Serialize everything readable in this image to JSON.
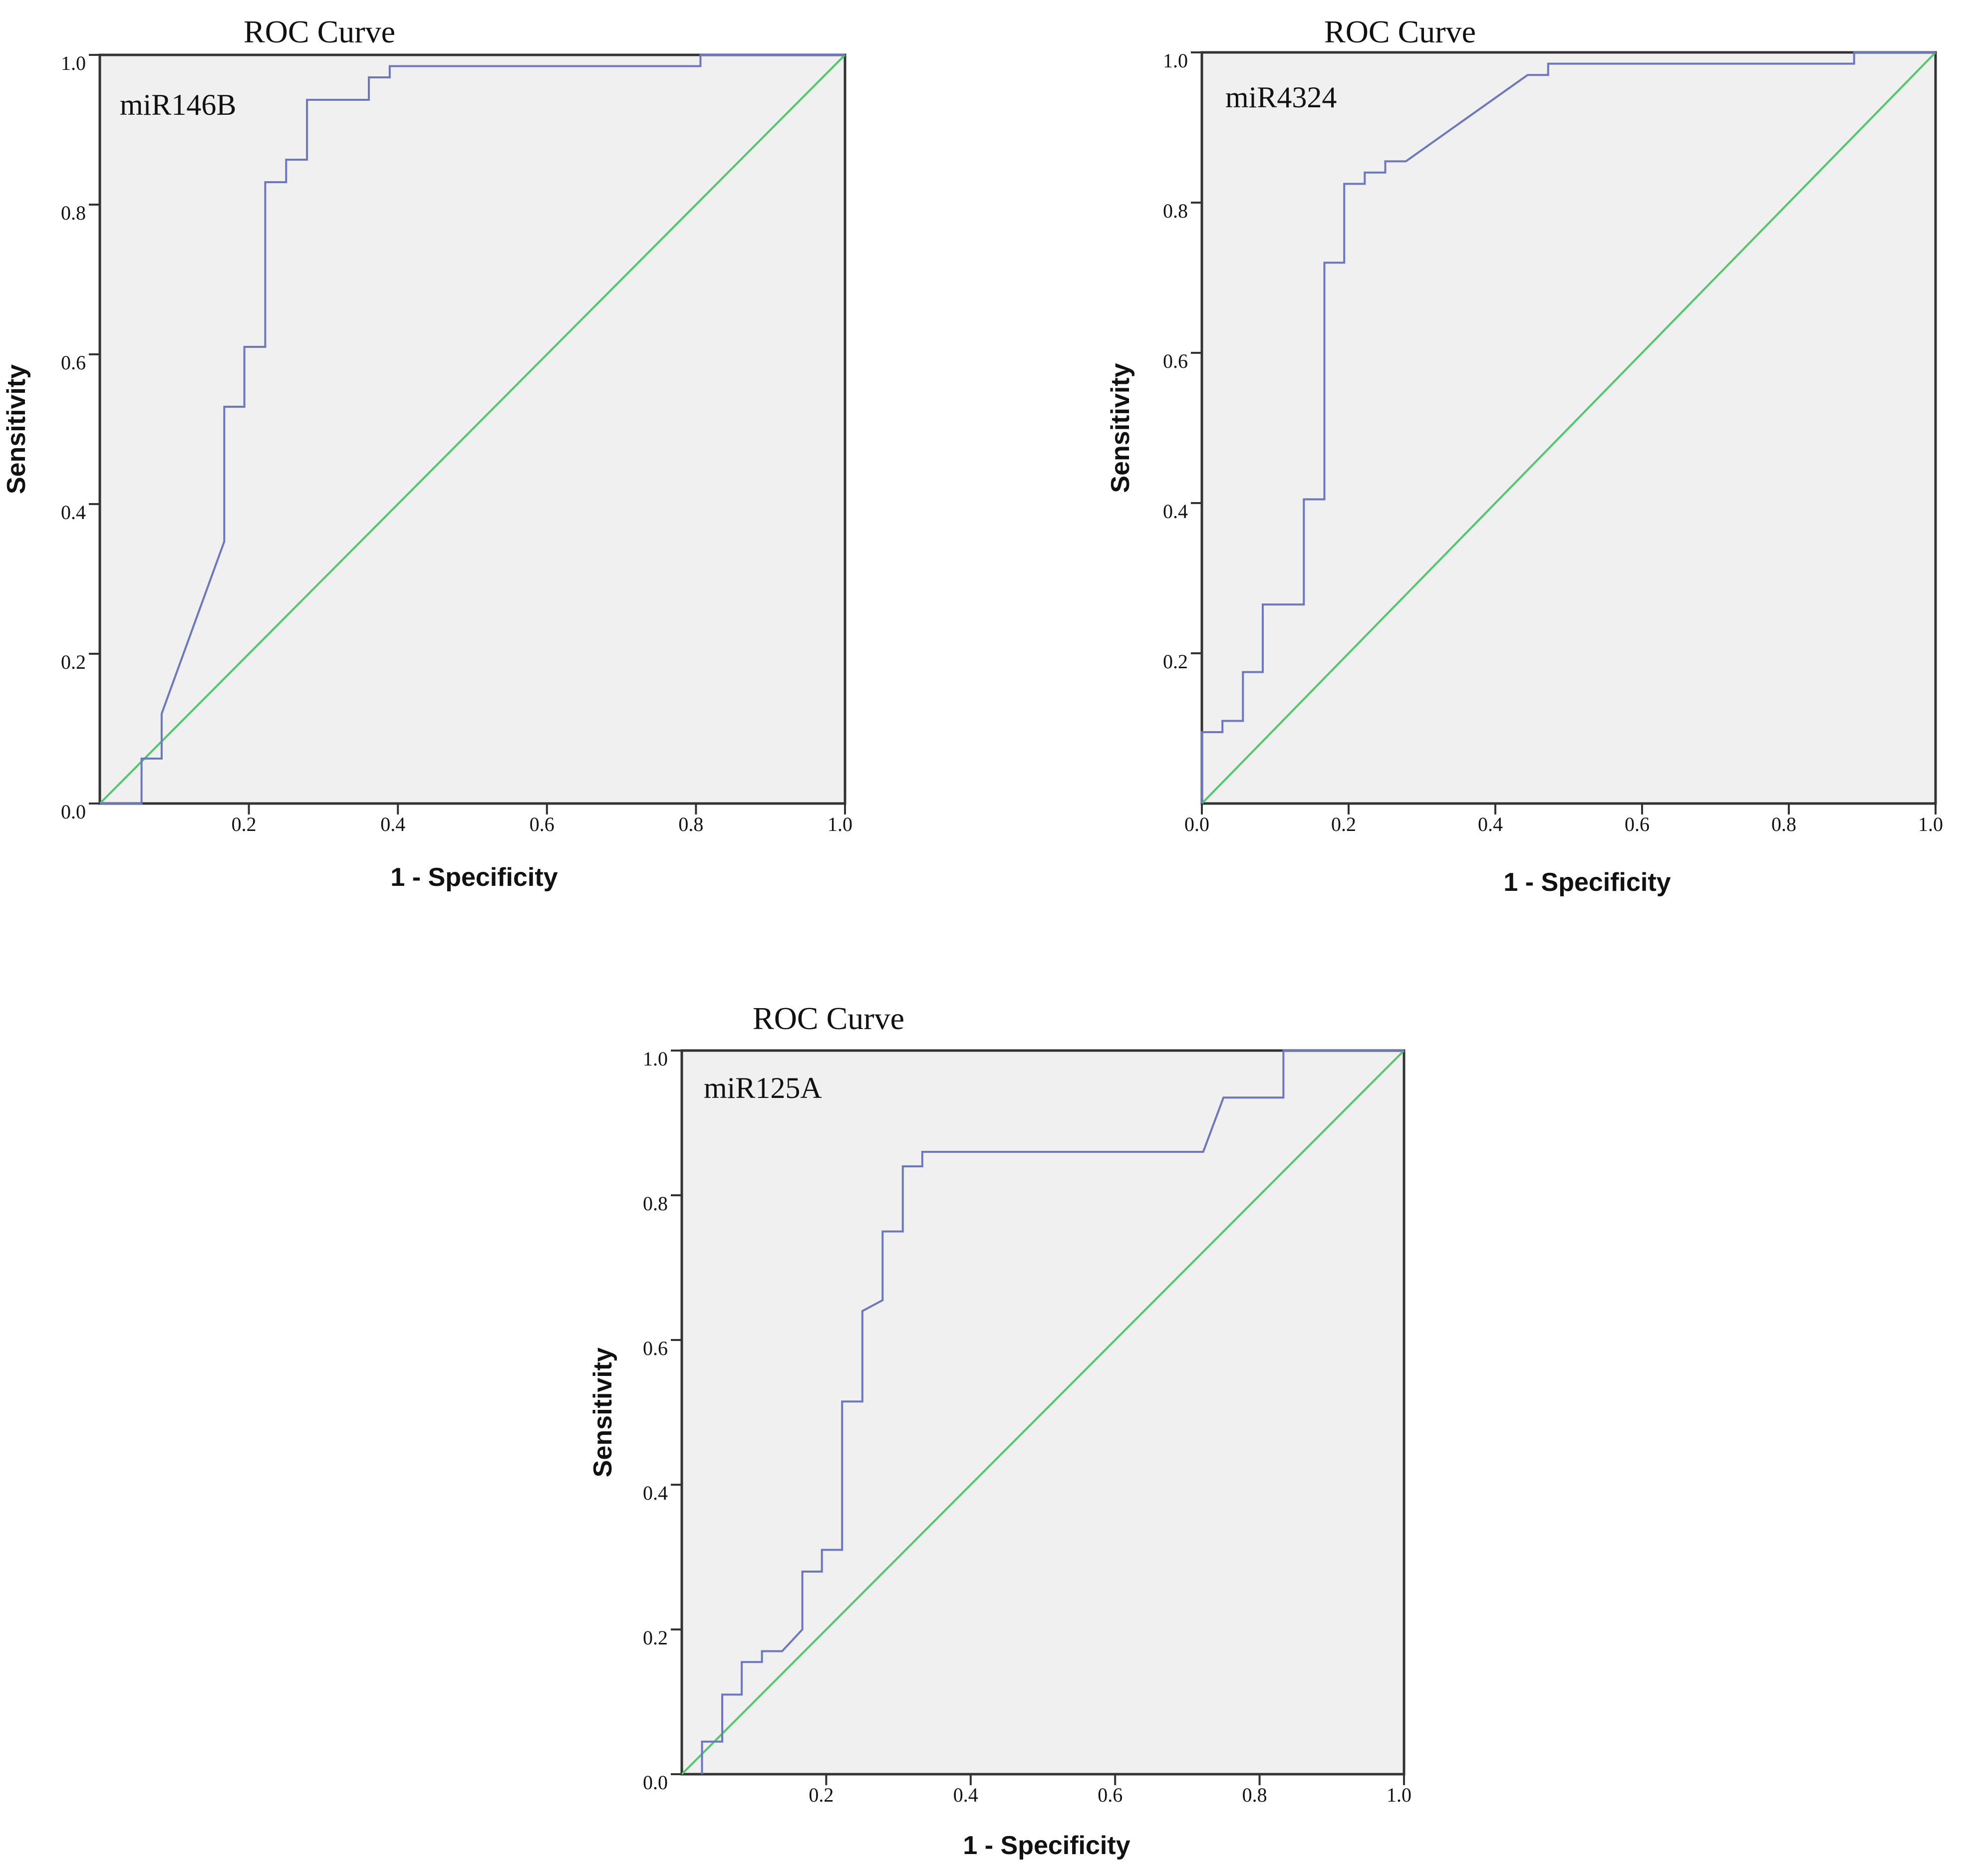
{
  "colors": {
    "plot_background": "#f0f0f0",
    "frame": "#333333",
    "roc_curve": "#6b78c0",
    "reference_line": "#4fc86a"
  },
  "chart_data": [
    {
      "type": "line",
      "title": "ROC Curve",
      "panel_label": "miR146B",
      "xlabel": "1 - Specificity",
      "ylabel": "Sensitivity",
      "xlim": [
        0,
        1
      ],
      "ylim": [
        0,
        1
      ],
      "x_ticks": [
        0.2,
        0.4,
        0.6,
        0.8,
        1.0
      ],
      "x_tick_labels": [
        "0.2",
        "0.4",
        "0.6",
        "0.8",
        "1.0"
      ],
      "y_ticks": [
        0.0,
        0.2,
        0.4,
        0.6,
        0.8,
        1.0
      ],
      "y_tick_labels": [
        "0.0",
        "0.2",
        "0.4",
        "0.6",
        "0.8",
        "1.0"
      ],
      "grid": false,
      "series": [
        {
          "name": "ROC curve",
          "x": [
            0.0,
            0.056,
            0.056,
            0.083,
            0.083,
            0.167,
            0.167,
            0.194,
            0.194,
            0.222,
            0.222,
            0.25,
            0.25,
            0.278,
            0.278,
            0.361,
            0.361,
            0.389,
            0.389,
            0.806,
            0.806,
            1.0
          ],
          "y": [
            0.0,
            0.0,
            0.06,
            0.06,
            0.12,
            0.35,
            0.53,
            0.53,
            0.61,
            0.61,
            0.83,
            0.83,
            0.86,
            0.86,
            0.94,
            0.94,
            0.97,
            0.97,
            0.985,
            0.985,
            1.0,
            1.0
          ]
        },
        {
          "name": "Reference line",
          "x": [
            0,
            1
          ],
          "y": [
            0,
            1
          ]
        }
      ]
    },
    {
      "type": "line",
      "title": "ROC Curve",
      "panel_label": "miR4324",
      "xlabel": "1 - Specificity",
      "ylabel": "Sensitivity",
      "xlim": [
        0,
        1
      ],
      "ylim": [
        0,
        1
      ],
      "x_ticks": [
        0.0,
        0.2,
        0.4,
        0.6,
        0.8,
        1.0
      ],
      "x_tick_labels": [
        "0.0",
        "0.2",
        "0.4",
        "0.6",
        "0.8",
        "1.0"
      ],
      "y_ticks": [
        0.2,
        0.4,
        0.6,
        0.8,
        1.0
      ],
      "y_tick_labels": [
        "0.2",
        "0.4",
        "0.6",
        "0.8",
        "1.0"
      ],
      "grid": false,
      "series": [
        {
          "name": "ROC curve",
          "x": [
            0.0,
            0.0,
            0.028,
            0.028,
            0.056,
            0.056,
            0.083,
            0.083,
            0.139,
            0.139,
            0.167,
            0.167,
            0.194,
            0.194,
            0.222,
            0.222,
            0.25,
            0.25,
            0.278,
            0.444,
            0.444,
            0.472,
            0.472,
            0.889,
            0.889,
            1.0
          ],
          "y": [
            0.0,
            0.095,
            0.095,
            0.11,
            0.11,
            0.175,
            0.175,
            0.265,
            0.265,
            0.405,
            0.405,
            0.72,
            0.72,
            0.825,
            0.825,
            0.84,
            0.84,
            0.855,
            0.855,
            0.97,
            0.97,
            0.97,
            0.985,
            0.985,
            1.0,
            1.0
          ]
        },
        {
          "name": "Reference line",
          "x": [
            0,
            1
          ],
          "y": [
            0,
            1
          ]
        }
      ]
    },
    {
      "type": "line",
      "title": "ROC Curve",
      "panel_label": "miR125A",
      "xlabel": "1 - Specificity",
      "ylabel": "Sensitivity",
      "xlim": [
        0,
        1
      ],
      "ylim": [
        0,
        1
      ],
      "x_ticks": [
        0.2,
        0.4,
        0.6,
        0.8,
        1.0
      ],
      "x_tick_labels": [
        "0.2",
        "0.4",
        "0.6",
        "0.8",
        "1.0"
      ],
      "y_ticks": [
        0.0,
        0.2,
        0.4,
        0.6,
        0.8,
        1.0
      ],
      "y_tick_labels": [
        "0.0",
        "0.2",
        "0.4",
        "0.6",
        "0.8",
        "1.0"
      ],
      "grid": false,
      "series": [
        {
          "name": "ROC curve",
          "x": [
            0.028,
            0.028,
            0.056,
            0.056,
            0.083,
            0.083,
            0.111,
            0.111,
            0.139,
            0.167,
            0.167,
            0.194,
            0.194,
            0.222,
            0.222,
            0.25,
            0.25,
            0.278,
            0.278,
            0.306,
            0.306,
            0.333,
            0.333,
            0.722,
            0.75,
            0.833,
            0.833,
            1.0
          ],
          "y": [
            0.0,
            0.045,
            0.045,
            0.11,
            0.11,
            0.155,
            0.155,
            0.17,
            0.17,
            0.2,
            0.28,
            0.28,
            0.31,
            0.31,
            0.515,
            0.515,
            0.64,
            0.655,
            0.75,
            0.75,
            0.84,
            0.84,
            0.86,
            0.86,
            0.935,
            0.935,
            1.0,
            1.0
          ]
        },
        {
          "name": "Reference line",
          "x": [
            0,
            1
          ],
          "y": [
            0,
            1
          ]
        }
      ]
    }
  ]
}
